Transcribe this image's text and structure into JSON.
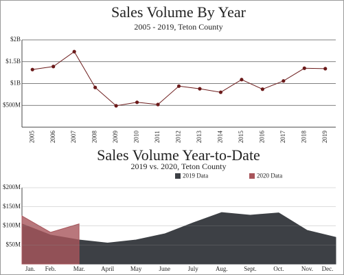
{
  "chart_data": [
    {
      "type": "line",
      "title": "Sales Volume By Year",
      "subtitle": "2005 - 2019, Teton County",
      "categories": [
        "2005",
        "2006",
        "2007",
        "2008",
        "2009",
        "2010",
        "2011",
        "2012",
        "2013",
        "2014",
        "2015",
        "2016",
        "2017",
        "2018",
        "2019"
      ],
      "series": [
        {
          "name": "Sales Volume",
          "color": "#6b1a1a",
          "values": [
            1320000000,
            1390000000,
            1730000000,
            910000000,
            490000000,
            570000000,
            520000000,
            940000000,
            880000000,
            800000000,
            1090000000,
            870000000,
            1060000000,
            1350000000,
            1340000000
          ]
        }
      ],
      "ylim": [
        0,
        2000000000
      ],
      "yticks": [
        {
          "value": 500000000,
          "label": "$500M"
        },
        {
          "value": 1000000000,
          "label": "$1B"
        },
        {
          "value": 1500000000,
          "label": "$1.5B"
        },
        {
          "value": 2000000000,
          "label": "$2B"
        }
      ],
      "grid": true
    },
    {
      "type": "area",
      "title": "Sales Volume Year-to-Date",
      "subtitle": "2019 vs. 2020, Teton County",
      "categories": [
        "Jan.",
        "Feb.",
        "Mar.",
        "April",
        "May",
        "June",
        "July",
        "Aug.",
        "Sept.",
        "Oct.",
        "Nov.",
        "Dec."
      ],
      "series": [
        {
          "name": "2019 Data",
          "color": "#3d4045",
          "values": [
            105000000,
            76000000,
            63000000,
            55000000,
            63000000,
            79000000,
            108000000,
            135000000,
            128000000,
            134000000,
            88000000,
            70000000
          ]
        },
        {
          "name": "2020 Data",
          "color": "#a8555b",
          "values": [
            126000000,
            83000000,
            105000000,
            null,
            null,
            null,
            null,
            null,
            null,
            null,
            null,
            null
          ]
        }
      ],
      "ylim": [
        0,
        200000000
      ],
      "yticks": [
        {
          "value": 50000000,
          "label": "$50M"
        },
        {
          "value": 100000000,
          "label": "$100M"
        },
        {
          "value": 150000000,
          "label": "$150M"
        },
        {
          "value": 200000000,
          "label": "$200M"
        }
      ],
      "grid": true
    }
  ]
}
